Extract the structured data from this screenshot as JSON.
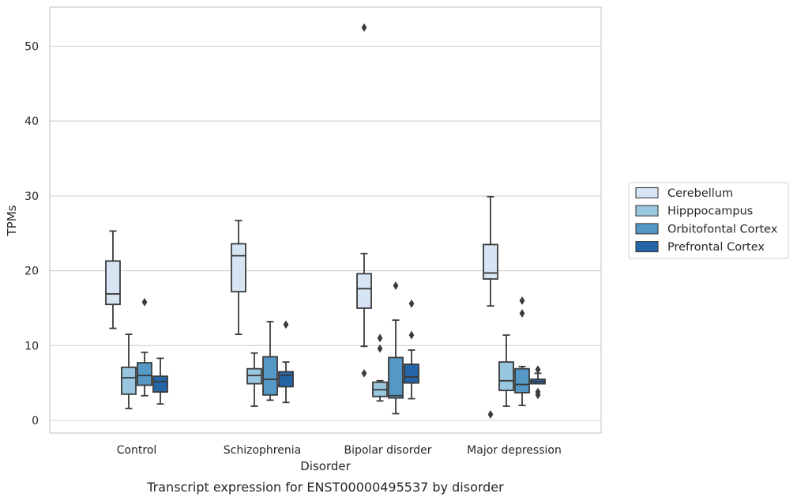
{
  "chart_data": {
    "type": "box",
    "caption": "Transcript expression for ENST00000495537 by disorder",
    "xlabel": "Disorder",
    "ylabel": "TPMs",
    "ylim": [
      -1.7,
      55.3
    ],
    "yticks": [
      0,
      10,
      20,
      30,
      40,
      50
    ],
    "grid": "horizontal",
    "legend_position": "right",
    "categories": [
      "Control",
      "Schizophrenia",
      "Bipolar disorder",
      "Major depression"
    ],
    "series": [
      {
        "name": "Cerebellum",
        "color": "#d6e5f4",
        "boxes": [
          {
            "whisker_low": 12.3,
            "q1": 15.5,
            "median": 16.9,
            "q3": 21.3,
            "whisker_high": 25.3,
            "outliers": []
          },
          {
            "whisker_low": 11.5,
            "q1": 17.2,
            "median": 22.0,
            "q3": 23.6,
            "whisker_high": 26.7,
            "outliers": []
          },
          {
            "whisker_low": 9.9,
            "q1": 15.0,
            "median": 17.6,
            "q3": 19.6,
            "whisker_high": 22.3,
            "outliers": [
              6.3,
              52.5
            ]
          },
          {
            "whisker_low": 15.3,
            "q1": 18.9,
            "median": 19.7,
            "q3": 23.5,
            "whisker_high": 29.9,
            "outliers": [
              0.8
            ]
          }
        ]
      },
      {
        "name": "Hipppocampus",
        "color": "#9ac7e0",
        "boxes": [
          {
            "whisker_low": 1.6,
            "q1": 3.5,
            "median": 5.7,
            "q3": 7.1,
            "whisker_high": 11.5,
            "outliers": []
          },
          {
            "whisker_low": 1.9,
            "q1": 4.9,
            "median": 6.0,
            "q3": 6.9,
            "whisker_high": 9.0,
            "outliers": []
          },
          {
            "whisker_low": 2.6,
            "q1": 3.2,
            "median": 4.1,
            "q3": 5.1,
            "whisker_high": 5.3,
            "outliers": [
              9.6,
              11.0
            ]
          },
          {
            "whisker_low": 1.9,
            "q1": 4.0,
            "median": 5.3,
            "q3": 7.8,
            "whisker_high": 11.4,
            "outliers": []
          }
        ]
      },
      {
        "name": "Orbitofontal Cortex",
        "color": "#5598c6",
        "boxes": [
          {
            "whisker_low": 3.3,
            "q1": 4.7,
            "median": 6.0,
            "q3": 7.7,
            "whisker_high": 9.1,
            "outliers": [
              15.8
            ]
          },
          {
            "whisker_low": 2.7,
            "q1": 3.4,
            "median": 5.5,
            "q3": 8.5,
            "whisker_high": 13.2,
            "outliers": []
          },
          {
            "whisker_low": 0.9,
            "q1": 3.0,
            "median": 3.3,
            "q3": 8.4,
            "whisker_high": 13.4,
            "outliers": [
              18.0
            ]
          },
          {
            "whisker_low": 2.0,
            "q1": 3.7,
            "median": 4.8,
            "q3": 6.9,
            "whisker_high": 7.2,
            "outliers": [
              14.3,
              16.0
            ]
          }
        ]
      },
      {
        "name": "Prefrontal Cortex",
        "color": "#2465a8",
        "boxes": [
          {
            "whisker_low": 2.2,
            "q1": 3.8,
            "median": 5.2,
            "q3": 5.9,
            "whisker_high": 8.3,
            "outliers": []
          },
          {
            "whisker_low": 2.4,
            "q1": 4.5,
            "median": 6.0,
            "q3": 6.5,
            "whisker_high": 7.8,
            "outliers": [
              12.8
            ]
          },
          {
            "whisker_low": 2.9,
            "q1": 5.0,
            "median": 5.8,
            "q3": 7.5,
            "whisker_high": 9.4,
            "outliers": [
              11.4,
              15.6
            ]
          },
          {
            "whisker_low": 4.9,
            "q1": 4.9,
            "median": 5.2,
            "q3": 5.5,
            "whisker_high": 6.3,
            "outliers": [
              3.4,
              3.8,
              6.8
            ]
          }
        ]
      }
    ]
  }
}
